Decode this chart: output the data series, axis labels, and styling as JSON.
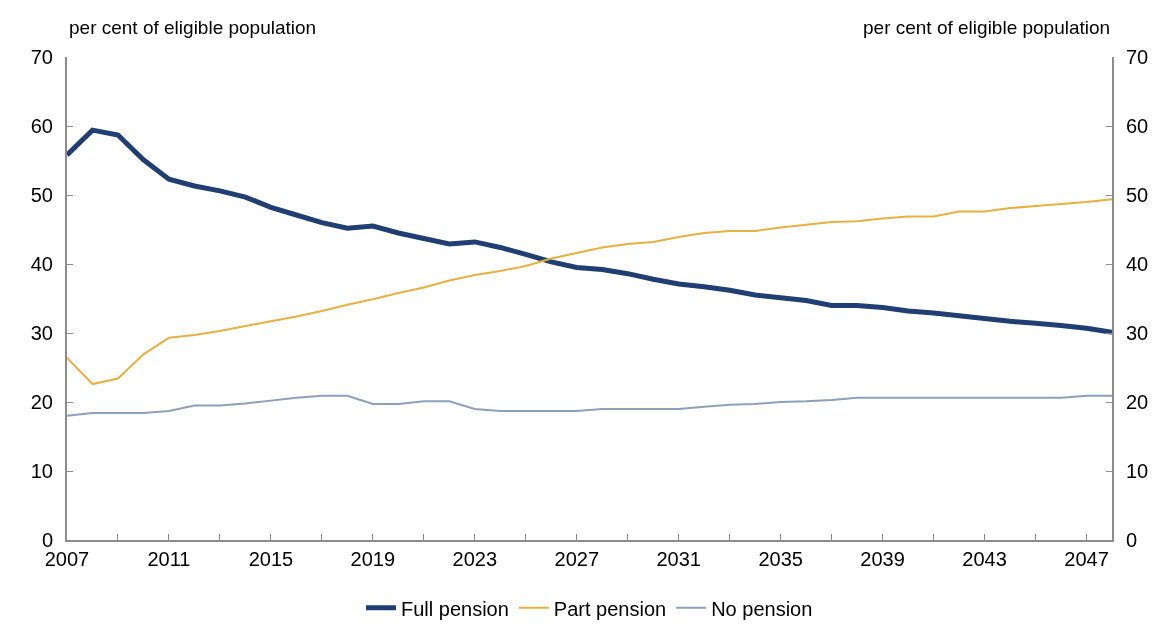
{
  "chart_data": {
    "type": "line",
    "ylabel": "per cent of eligible population",
    "y2label": "per cent of eligible population",
    "x": [
      2007,
      2008,
      2009,
      2010,
      2011,
      2012,
      2013,
      2014,
      2015,
      2016,
      2017,
      2018,
      2019,
      2020,
      2021,
      2022,
      2023,
      2024,
      2025,
      2026,
      2027,
      2028,
      2029,
      2030,
      2031,
      2032,
      2033,
      2034,
      2035,
      2036,
      2037,
      2038,
      2039,
      2040,
      2041,
      2042,
      2043,
      2044,
      2045,
      2046,
      2047,
      2048
    ],
    "series": [
      {
        "name": "Full pension",
        "color": "#1f3f73",
        "values": [
          55.8,
          59.4,
          58.7,
          55.1,
          52.3,
          51.3,
          50.6,
          49.7,
          48.2,
          47.1,
          46.0,
          45.2,
          45.5,
          44.5,
          43.7,
          42.9,
          43.2,
          42.4,
          41.4,
          40.3,
          39.5,
          39.2,
          38.6,
          37.8,
          37.1,
          36.7,
          36.2,
          35.5,
          35.1,
          34.7,
          34.0,
          34.0,
          33.7,
          33.2,
          32.9,
          32.5,
          32.1,
          31.7,
          31.4,
          31.1,
          30.7,
          30.1
        ]
      },
      {
        "name": "Part pension",
        "color": "#e8b040",
        "values": [
          26.4,
          22.6,
          23.4,
          26.9,
          29.3,
          29.7,
          30.3,
          31.0,
          31.7,
          32.4,
          33.2,
          34.1,
          34.9,
          35.8,
          36.6,
          37.6,
          38.4,
          39.0,
          39.7,
          40.8,
          41.6,
          42.4,
          42.9,
          43.2,
          43.9,
          44.5,
          44.8,
          44.8,
          45.3,
          45.7,
          46.1,
          46.2,
          46.6,
          46.9,
          46.9,
          47.6,
          47.6,
          48.1,
          48.4,
          48.7,
          49.0,
          49.4
        ]
      },
      {
        "name": "No pension",
        "color": "#8aa0bc",
        "values": [
          18.0,
          18.4,
          18.4,
          18.4,
          18.7,
          19.5,
          19.5,
          19.8,
          20.2,
          20.6,
          20.9,
          20.9,
          19.7,
          19.7,
          20.1,
          20.1,
          19.0,
          18.7,
          18.7,
          18.7,
          18.7,
          19.0,
          19.0,
          19.0,
          19.0,
          19.3,
          19.6,
          19.7,
          20.0,
          20.1,
          20.3,
          20.6,
          20.6,
          20.6,
          20.6,
          20.6,
          20.6,
          20.6,
          20.6,
          20.6,
          20.9,
          20.9
        ]
      }
    ],
    "xlim": [
      2007,
      2048
    ],
    "xticks": [
      2007,
      {
        "value": 2009,
        "label": null
      },
      2011,
      {
        "value": 2013,
        "label": null
      },
      2015,
      {
        "value": 2017,
        "label": null
      },
      2019,
      {
        "value": 2021,
        "label": null
      },
      2023,
      {
        "value": 2025,
        "label": null
      },
      2027,
      {
        "value": 2029,
        "label": null
      },
      2031,
      {
        "value": 2033,
        "label": null
      },
      2035,
      {
        "value": 2037,
        "label": null
      },
      2039,
      {
        "value": 2041,
        "label": null
      },
      2043,
      {
        "value": 2045,
        "label": null
      },
      2047
    ],
    "ylim": [
      0,
      70
    ],
    "yticks": [
      0,
      10,
      20,
      30,
      40,
      50,
      60,
      70
    ],
    "y2lim": [
      0,
      70
    ],
    "y2ticks": [
      0,
      10,
      20,
      30,
      40,
      50,
      60,
      70
    ],
    "legend": "bottom",
    "marker": "none",
    "line_style": "solid"
  }
}
